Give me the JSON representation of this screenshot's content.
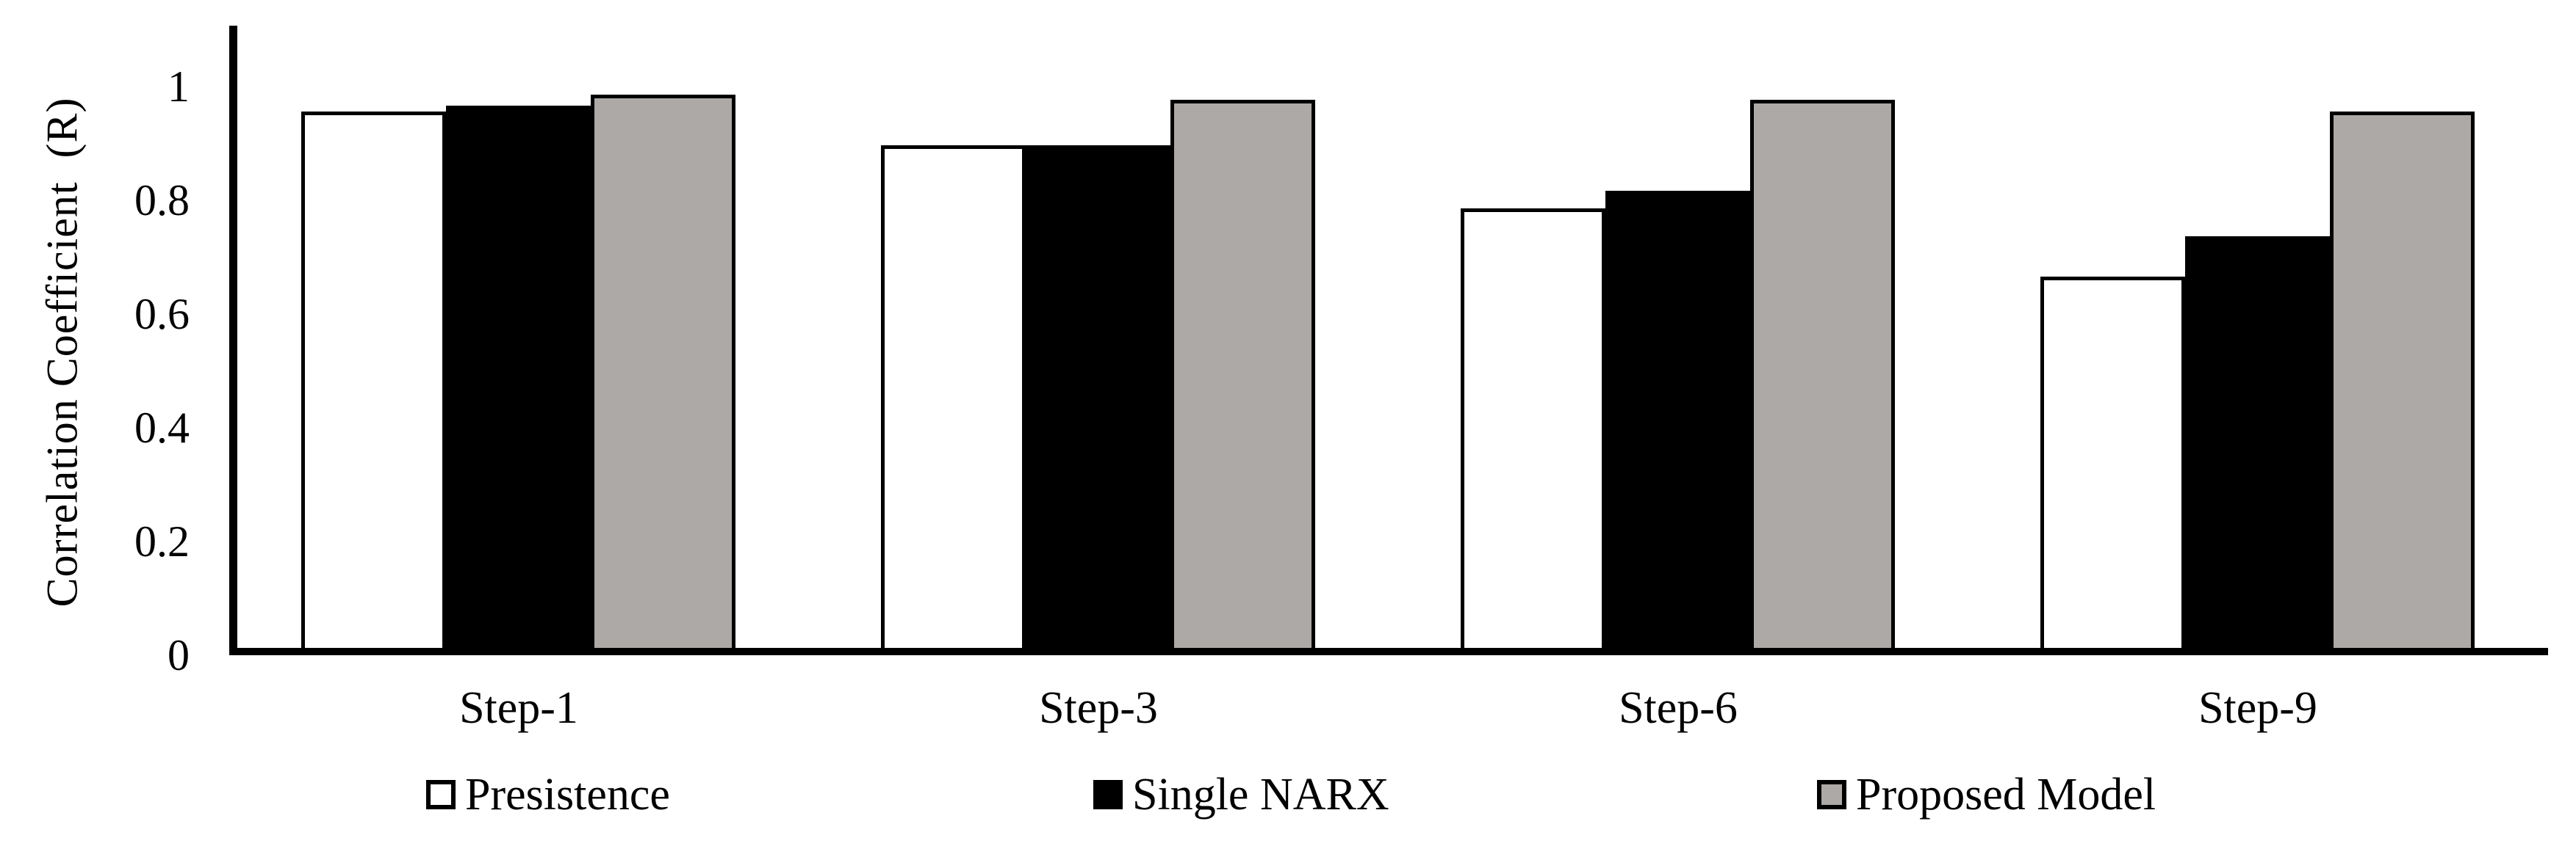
{
  "chart_data": {
    "type": "bar",
    "title": "",
    "xlabel": "",
    "ylabel": "Correlation Coefficient  (R)",
    "categories": [
      "Step-1",
      "Step-3",
      "Step-6",
      "Step-9"
    ],
    "series": [
      {
        "name": "Presistence",
        "color": "#FFFFFF",
        "border_color": "#000000",
        "values": [
          0.95,
          0.89,
          0.78,
          0.66
        ]
      },
      {
        "name": "Single NARX",
        "color": "#000000",
        "border_color": "#000000",
        "values": [
          0.96,
          0.89,
          0.81,
          0.73
        ]
      },
      {
        "name": "Proposed Model",
        "color": "#ACA9A7",
        "border_color": "#000000",
        "values": [
          0.98,
          0.97,
          0.97,
          0.95
        ]
      }
    ],
    "ylim": [
      0,
      1.1
    ],
    "yticks": [
      {
        "v": 0,
        "label": "0"
      },
      {
        "v": 0.2,
        "label": "0.2"
      },
      {
        "v": 0.4,
        "label": "0.4"
      },
      {
        "v": 0.6,
        "label": "0.6"
      },
      {
        "v": 0.8,
        "label": "0.8"
      },
      {
        "v": 1,
        "label": "1"
      }
    ],
    "grid": false,
    "legend_position": "bottom",
    "axis_color": "#000000"
  }
}
